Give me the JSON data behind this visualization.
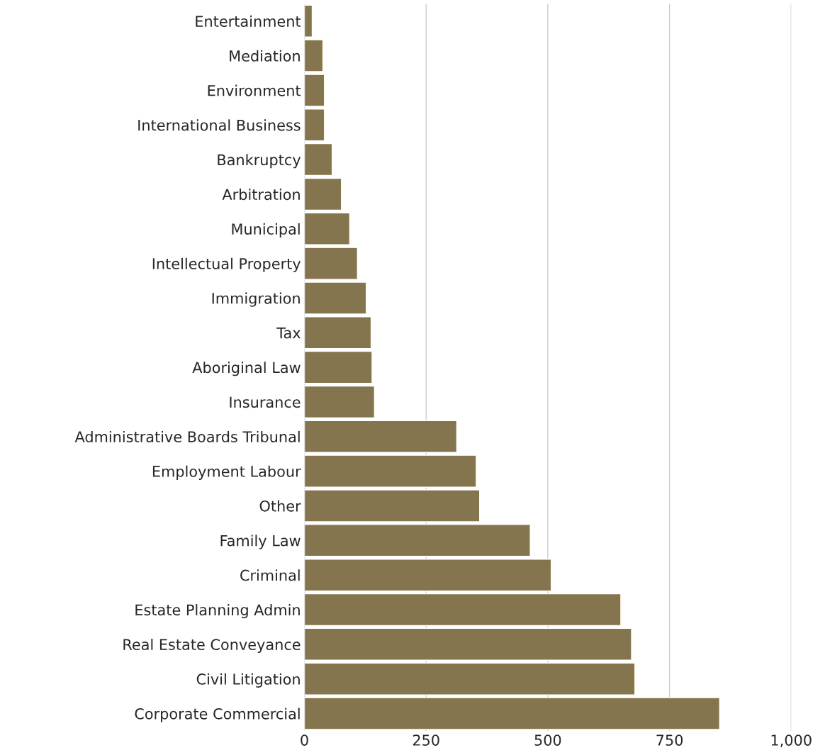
{
  "chart_data": {
    "type": "bar",
    "orientation": "horizontal",
    "categories": [
      "Entertainment",
      "Mediation",
      "Environment",
      "International Business",
      "Bankruptcy",
      "Arbitration",
      "Municipal",
      "Intellectual Property",
      "Immigration",
      "Tax",
      "Aboriginal Law",
      "Insurance",
      "Administrative Boards Tribunal",
      "Employment Labour",
      "Other",
      "Family Law",
      "Criminal",
      "Estate Planning Admin",
      "Real Estate Conveyance",
      "Civil Litigation",
      "Corporate Commercial"
    ],
    "values": [
      16,
      38,
      41,
      41,
      57,
      76,
      93,
      109,
      127,
      137,
      139,
      144,
      313,
      353,
      360,
      464,
      507,
      650,
      672,
      679,
      853
    ],
    "color": "#84754e",
    "xlim": [
      0,
      1000
    ],
    "xticks": [
      0,
      250,
      500,
      750,
      {
        "value": 1000,
        "label": "1,000"
      }
    ],
    "grid": "x",
    "legend": false
  }
}
